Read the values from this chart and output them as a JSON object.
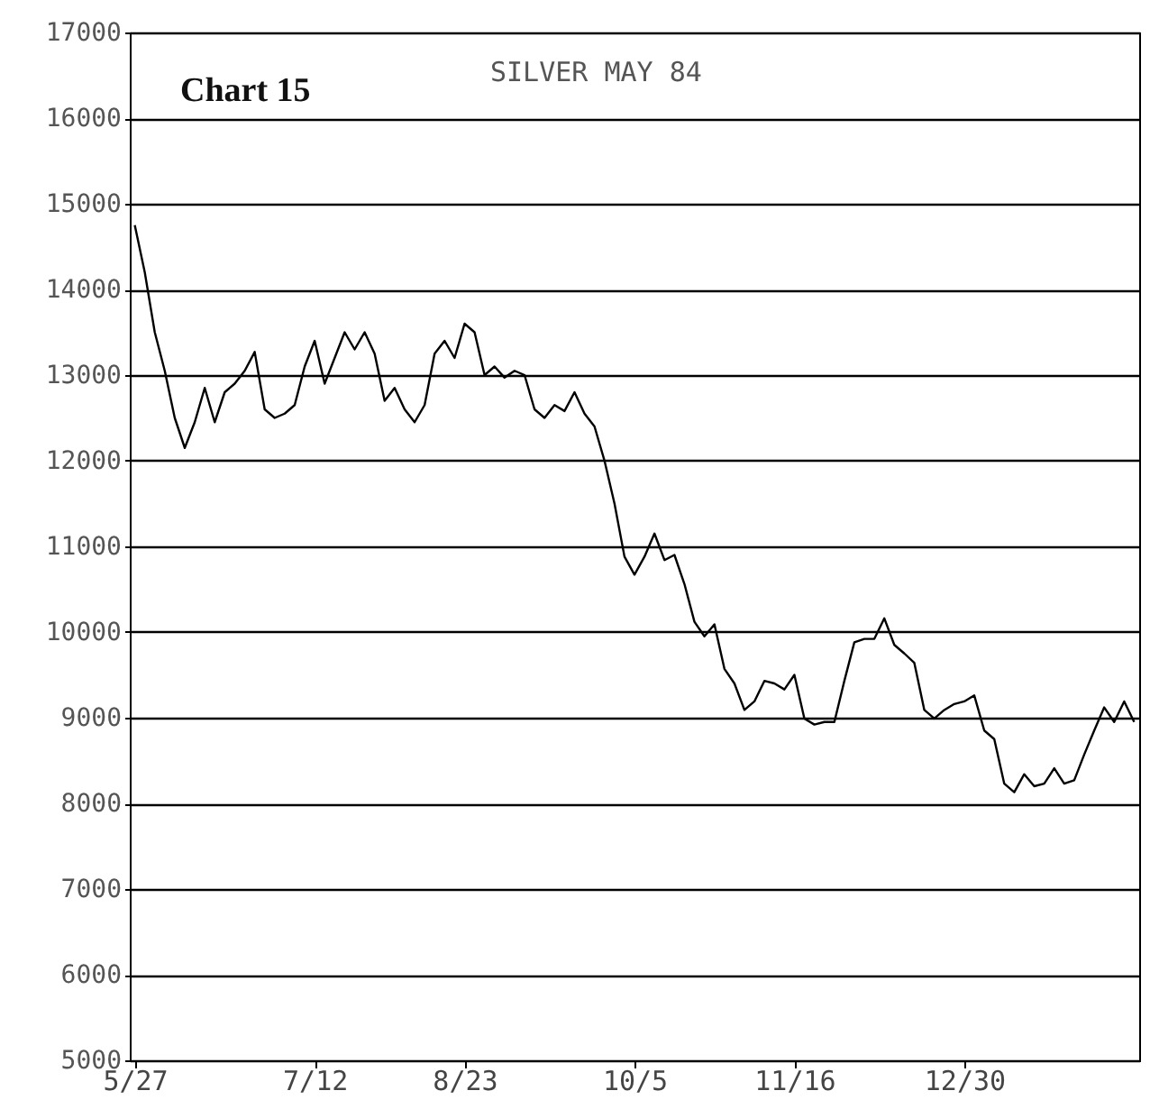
{
  "chart_data": {
    "type": "line",
    "title": "Chart 15",
    "subtitle": "SILVER MAY 84",
    "categories": [
      "5/27",
      null,
      null,
      null,
      null,
      null,
      null,
      null,
      null,
      null,
      null,
      null,
      null,
      null,
      null,
      null,
      null,
      null,
      "7/12",
      null,
      null,
      null,
      null,
      null,
      null,
      null,
      null,
      null,
      null,
      null,
      null,
      null,
      null,
      "8/23",
      null,
      null,
      null,
      null,
      null,
      null,
      null,
      null,
      null,
      null,
      null,
      null,
      null,
      null,
      null,
      null,
      "10/5",
      null,
      null,
      null,
      null,
      null,
      null,
      null,
      null,
      null,
      null,
      null,
      null,
      null,
      null,
      null,
      "11/16",
      null,
      null,
      null,
      null,
      null,
      null,
      null,
      null,
      null,
      null,
      null,
      null,
      null,
      null,
      null,
      null,
      "12/30",
      null,
      null,
      null,
      null,
      null,
      null,
      null,
      null,
      null,
      null,
      null,
      null,
      null,
      null,
      null,
      null,
      null
    ],
    "series": [
      {
        "color": "#000000",
        "values": [
          14750,
          14200,
          13500,
          13050,
          12500,
          12150,
          12450,
          12850,
          12450,
          12800,
          12900,
          13050,
          13270,
          12600,
          12500,
          12550,
          12650,
          13100,
          13400,
          12900,
          13200,
          13500,
          13300,
          13500,
          13250,
          12700,
          12850,
          12600,
          12450,
          12650,
          13250,
          13400,
          13200,
          13600,
          13500,
          13000,
          13100,
          12970,
          13050,
          13000,
          12600,
          12500,
          12650,
          12580,
          12800,
          12550,
          12400,
          12000,
          11500,
          10880,
          10670,
          10880,
          11150,
          10840,
          10900,
          10560,
          10120,
          9950,
          10090,
          9570,
          9400,
          9090,
          9190,
          9430,
          9400,
          9330,
          9500,
          8990,
          8920,
          8950,
          8950,
          9430,
          9880,
          9920,
          9920,
          10160,
          9850,
          9750,
          9640,
          9090,
          8990,
          9090,
          9160,
          9190,
          9260,
          8850,
          8750,
          8230,
          8130,
          8340,
          8200,
          8230,
          8410,
          8230,
          8270,
          8570,
          8850,
          9120,
          8950,
          9190,
          8950
        ]
      }
    ],
    "ylim": [
      5000,
      17000
    ],
    "yticks": [
      5000,
      6000,
      7000,
      8000,
      9000,
      10000,
      11000,
      12000,
      13000,
      14000,
      15000,
      16000,
      17000
    ],
    "grid": "y",
    "marker": "none",
    "line_style": "solid"
  }
}
